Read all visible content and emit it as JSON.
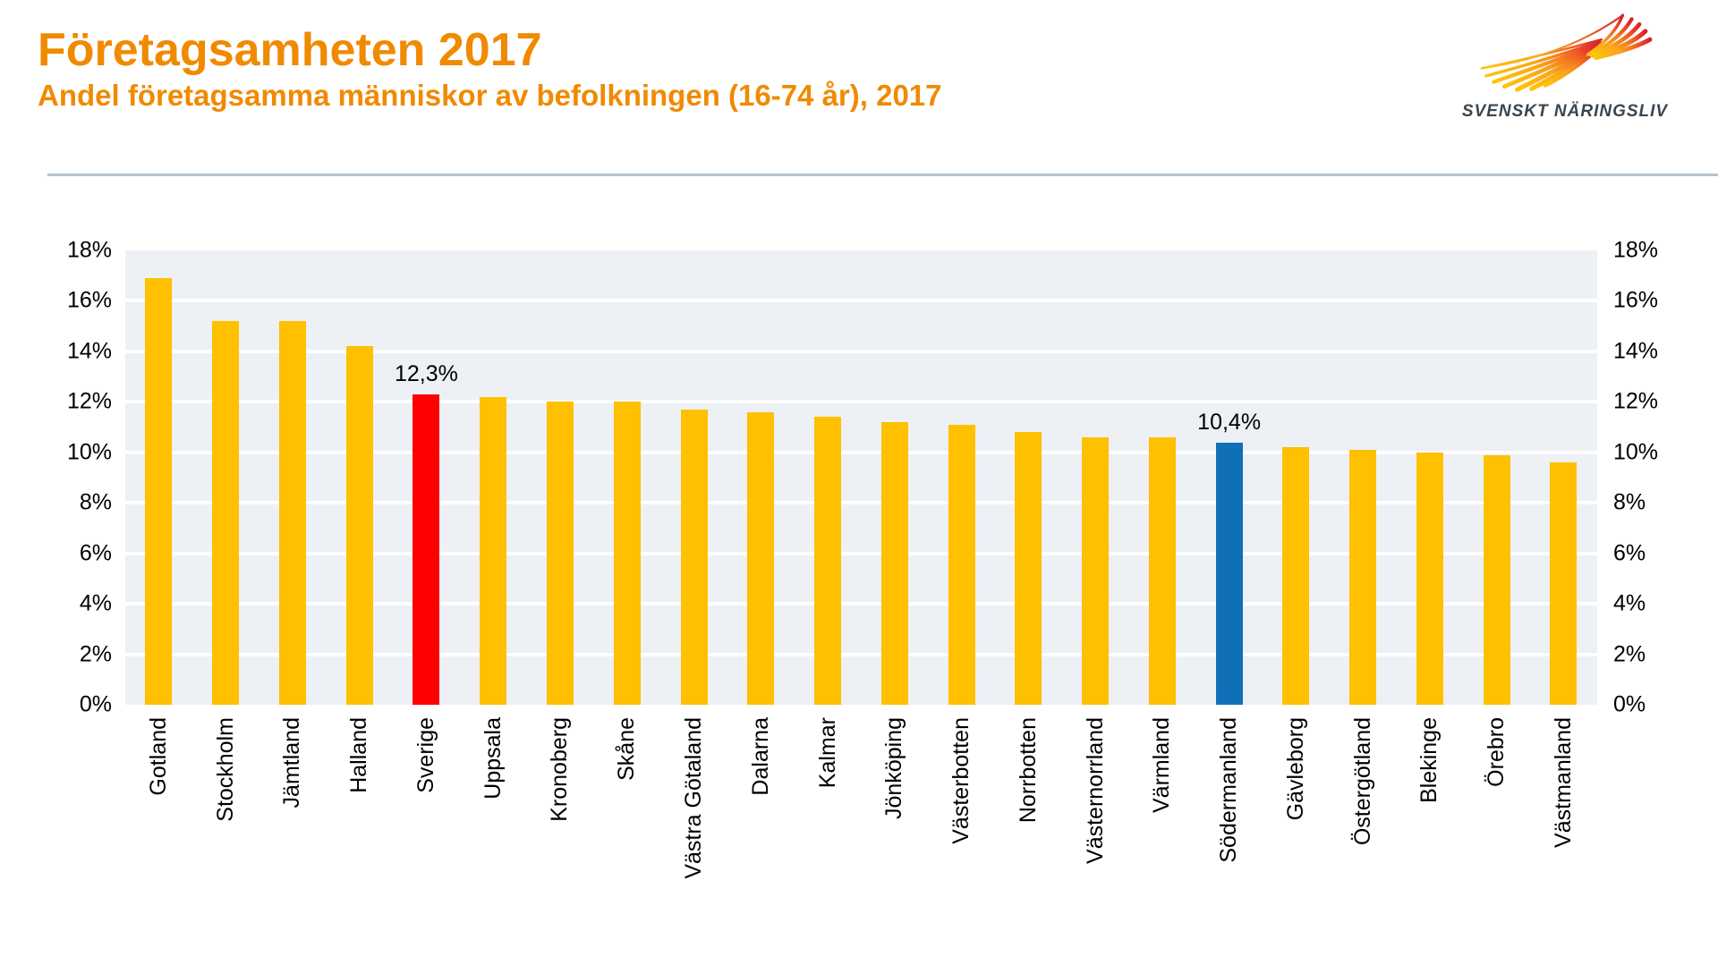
{
  "header": {
    "title": "Företagsamheten 2017",
    "subtitle": "Andel företagsamma människor av befolkningen (16-74 år), 2017"
  },
  "logo": {
    "brand": "SVENSKT NÄRINGSLIV",
    "icon": "wing-swoosh-icon",
    "colors": {
      "yellow": "#FFC50A",
      "orange": "#F58220",
      "red": "#D8232A",
      "text": "#3A4650"
    }
  },
  "accent_colors": {
    "title_orange": "#F08A00",
    "divider_gray": "#B7C3CE",
    "plot_background": "#EDF0F4"
  },
  "chart_data": {
    "type": "bar",
    "title": "Företagsamheten 2017",
    "subtitle": "Andel företagsamma människor av befolkningen (16-74 år), 2017",
    "categories": [
      "Gotland",
      "Stockholm",
      "Jämtland",
      "Halland",
      "Sverige",
      "Uppsala",
      "Kronoberg",
      "Skåne",
      "Västra Götaland",
      "Dalarna",
      "Kalmar",
      "Jönköping",
      "Västerbotten",
      "Norrbotten",
      "Västernorrland",
      "Värmland",
      "Södermanland",
      "Gävleborg",
      "Östergötland",
      "Blekinge",
      "Örebro",
      "Västmanland"
    ],
    "values": [
      16.9,
      15.2,
      15.2,
      14.2,
      12.3,
      12.2,
      12.0,
      12.0,
      11.7,
      11.6,
      11.4,
      11.2,
      11.1,
      10.8,
      10.6,
      10.6,
      10.4,
      10.2,
      10.1,
      10.0,
      9.9,
      9.6
    ],
    "bar_colors": [
      "#FFC000",
      "#FFC000",
      "#FFC000",
      "#FFC000",
      "#FE0000",
      "#FFC000",
      "#FFC000",
      "#FFC000",
      "#FFC000",
      "#FFC000",
      "#FFC000",
      "#FFC000",
      "#FFC000",
      "#FFC000",
      "#FFC000",
      "#FFC000",
      "#0F70B8",
      "#FFC000",
      "#FFC000",
      "#FFC000",
      "#FFC000",
      "#FFC000"
    ],
    "data_labels": [
      "",
      "",
      "",
      "",
      "12,3%",
      "",
      "",
      "",
      "",
      "",
      "",
      "",
      "",
      "",
      "",
      "",
      "10,4%",
      "",
      "",
      "",
      "",
      ""
    ],
    "highlighted": [
      {
        "category": "Sverige",
        "color": "#FE0000",
        "label": "12,3%"
      },
      {
        "category": "Södermanland",
        "color": "#0F70B8",
        "label": "10,4%"
      }
    ],
    "xlabel": "",
    "ylabel": "",
    "ylim": [
      0,
      18
    ],
    "ytick_step": 2,
    "yticks": [
      "18%",
      "16%",
      "14%",
      "12%",
      "10%",
      "8%",
      "6%",
      "4%",
      "2%",
      "0%"
    ],
    "grid": true,
    "gridline_color": "#ffffff",
    "axis_label_sides": "both",
    "legend": "none"
  }
}
